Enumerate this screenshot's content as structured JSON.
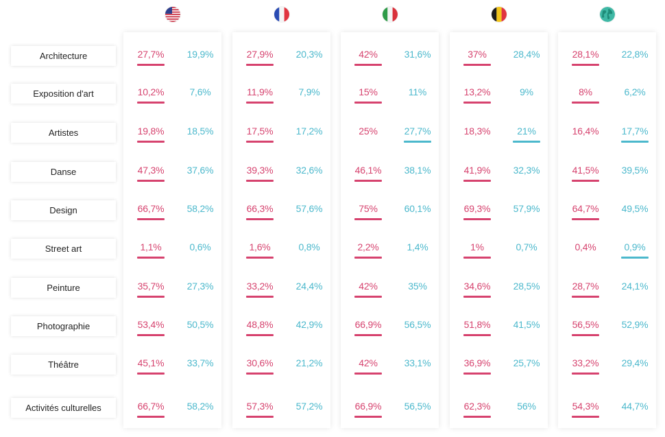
{
  "chart_data": {
    "type": "table",
    "countries": [
      {
        "icon": "usa-flag-icon"
      },
      {
        "icon": "france-flag-icon"
      },
      {
        "icon": "italy-flag-icon"
      },
      {
        "icon": "belgium-flag-icon"
      },
      {
        "icon": "world-globe-icon"
      }
    ],
    "rows": [
      {
        "label": "Architecture",
        "values": [
          [
            "27,7%",
            "19,9%"
          ],
          [
            "27,9%",
            "20,3%"
          ],
          [
            "42%",
            "31,6%"
          ],
          [
            "37%",
            "28,4%"
          ],
          [
            "28,1%",
            "22,8%"
          ]
        ],
        "highlight": [
          "a",
          "a",
          "a",
          "a",
          "a"
        ]
      },
      {
        "label": "Exposition d'art",
        "values": [
          [
            "10,2%",
            "7,6%"
          ],
          [
            "11,9%",
            "7,9%"
          ],
          [
            "15%",
            "11%"
          ],
          [
            "13,2%",
            "9%"
          ],
          [
            "8%",
            "6,2%"
          ]
        ],
        "highlight": [
          "a",
          "a",
          "a",
          "a",
          "a"
        ]
      },
      {
        "label": "Artistes",
        "values": [
          [
            "19,8%",
            "18,5%"
          ],
          [
            "17,5%",
            "17,2%"
          ],
          [
            "25%",
            "27,7%"
          ],
          [
            "18,3%",
            "21%"
          ],
          [
            "16,4%",
            "17,7%"
          ]
        ],
        "highlight": [
          "a",
          "a",
          "b",
          "b",
          "b"
        ]
      },
      {
        "label": "Danse",
        "values": [
          [
            "47,3%",
            "37,6%"
          ],
          [
            "39,3%",
            "32,6%"
          ],
          [
            "46,1%",
            "38,1%"
          ],
          [
            "41,9%",
            "32,3%"
          ],
          [
            "41,5%",
            "39,5%"
          ]
        ],
        "highlight": [
          "a",
          "a",
          "a",
          "a",
          "a"
        ]
      },
      {
        "label": "Design",
        "values": [
          [
            "66,7%",
            "58,2%"
          ],
          [
            "66,3%",
            "57,6%"
          ],
          [
            "75%",
            "60,1%"
          ],
          [
            "69,3%",
            "57,9%"
          ],
          [
            "64,7%",
            "49,5%"
          ]
        ],
        "highlight": [
          "a",
          "a",
          "a",
          "a",
          "a"
        ]
      },
      {
        "label": "Street art",
        "values": [
          [
            "1,1%",
            "0,6%"
          ],
          [
            "1,6%",
            "0,8%"
          ],
          [
            "2,2%",
            "1,4%"
          ],
          [
            "1%",
            "0,7%"
          ],
          [
            "0,4%",
            "0,9%"
          ]
        ],
        "highlight": [
          "a",
          "a",
          "a",
          "a",
          "b"
        ]
      },
      {
        "label": "Peinture",
        "values": [
          [
            "35,7%",
            "27,3%"
          ],
          [
            "33,2%",
            "24,4%"
          ],
          [
            "42%",
            "35%"
          ],
          [
            "34,6%",
            "28,5%"
          ],
          [
            "28,7%",
            "24,1%"
          ]
        ],
        "highlight": [
          "a",
          "a",
          "a",
          "a",
          "a"
        ]
      },
      {
        "label": "Photographie",
        "values": [
          [
            "53,4%",
            "50,5%"
          ],
          [
            "48,8%",
            "42,9%"
          ],
          [
            "66,9%",
            "56,5%"
          ],
          [
            "51,8%",
            "41,5%"
          ],
          [
            "56,5%",
            "52,9%"
          ]
        ],
        "highlight": [
          "a",
          "a",
          "a",
          "a",
          "a"
        ]
      },
      {
        "label": "Théâtre",
        "values": [
          [
            "45,1%",
            "33,7%"
          ],
          [
            "30,6%",
            "21,2%"
          ],
          [
            "42%",
            "33,1%"
          ],
          [
            "36,9%",
            "25,7%"
          ],
          [
            "33,2%",
            "29,4%"
          ]
        ],
        "highlight": [
          "a",
          "a",
          "a",
          "a",
          "a"
        ]
      },
      {
        "label": "Activités culturelles",
        "values": [
          [
            "66,7%",
            "58,2%"
          ],
          [
            "57,3%",
            "57,2%"
          ],
          [
            "66,9%",
            "56,5%"
          ],
          [
            "62,3%",
            "56%"
          ],
          [
            "54,3%",
            "44,7%"
          ]
        ],
        "highlight": [
          "a",
          "a",
          "a",
          "a",
          "a"
        ]
      }
    ],
    "colors": {
      "series_a": "#d6426e",
      "series_b": "#4bb8cc",
      "label_text": "#222222"
    }
  }
}
